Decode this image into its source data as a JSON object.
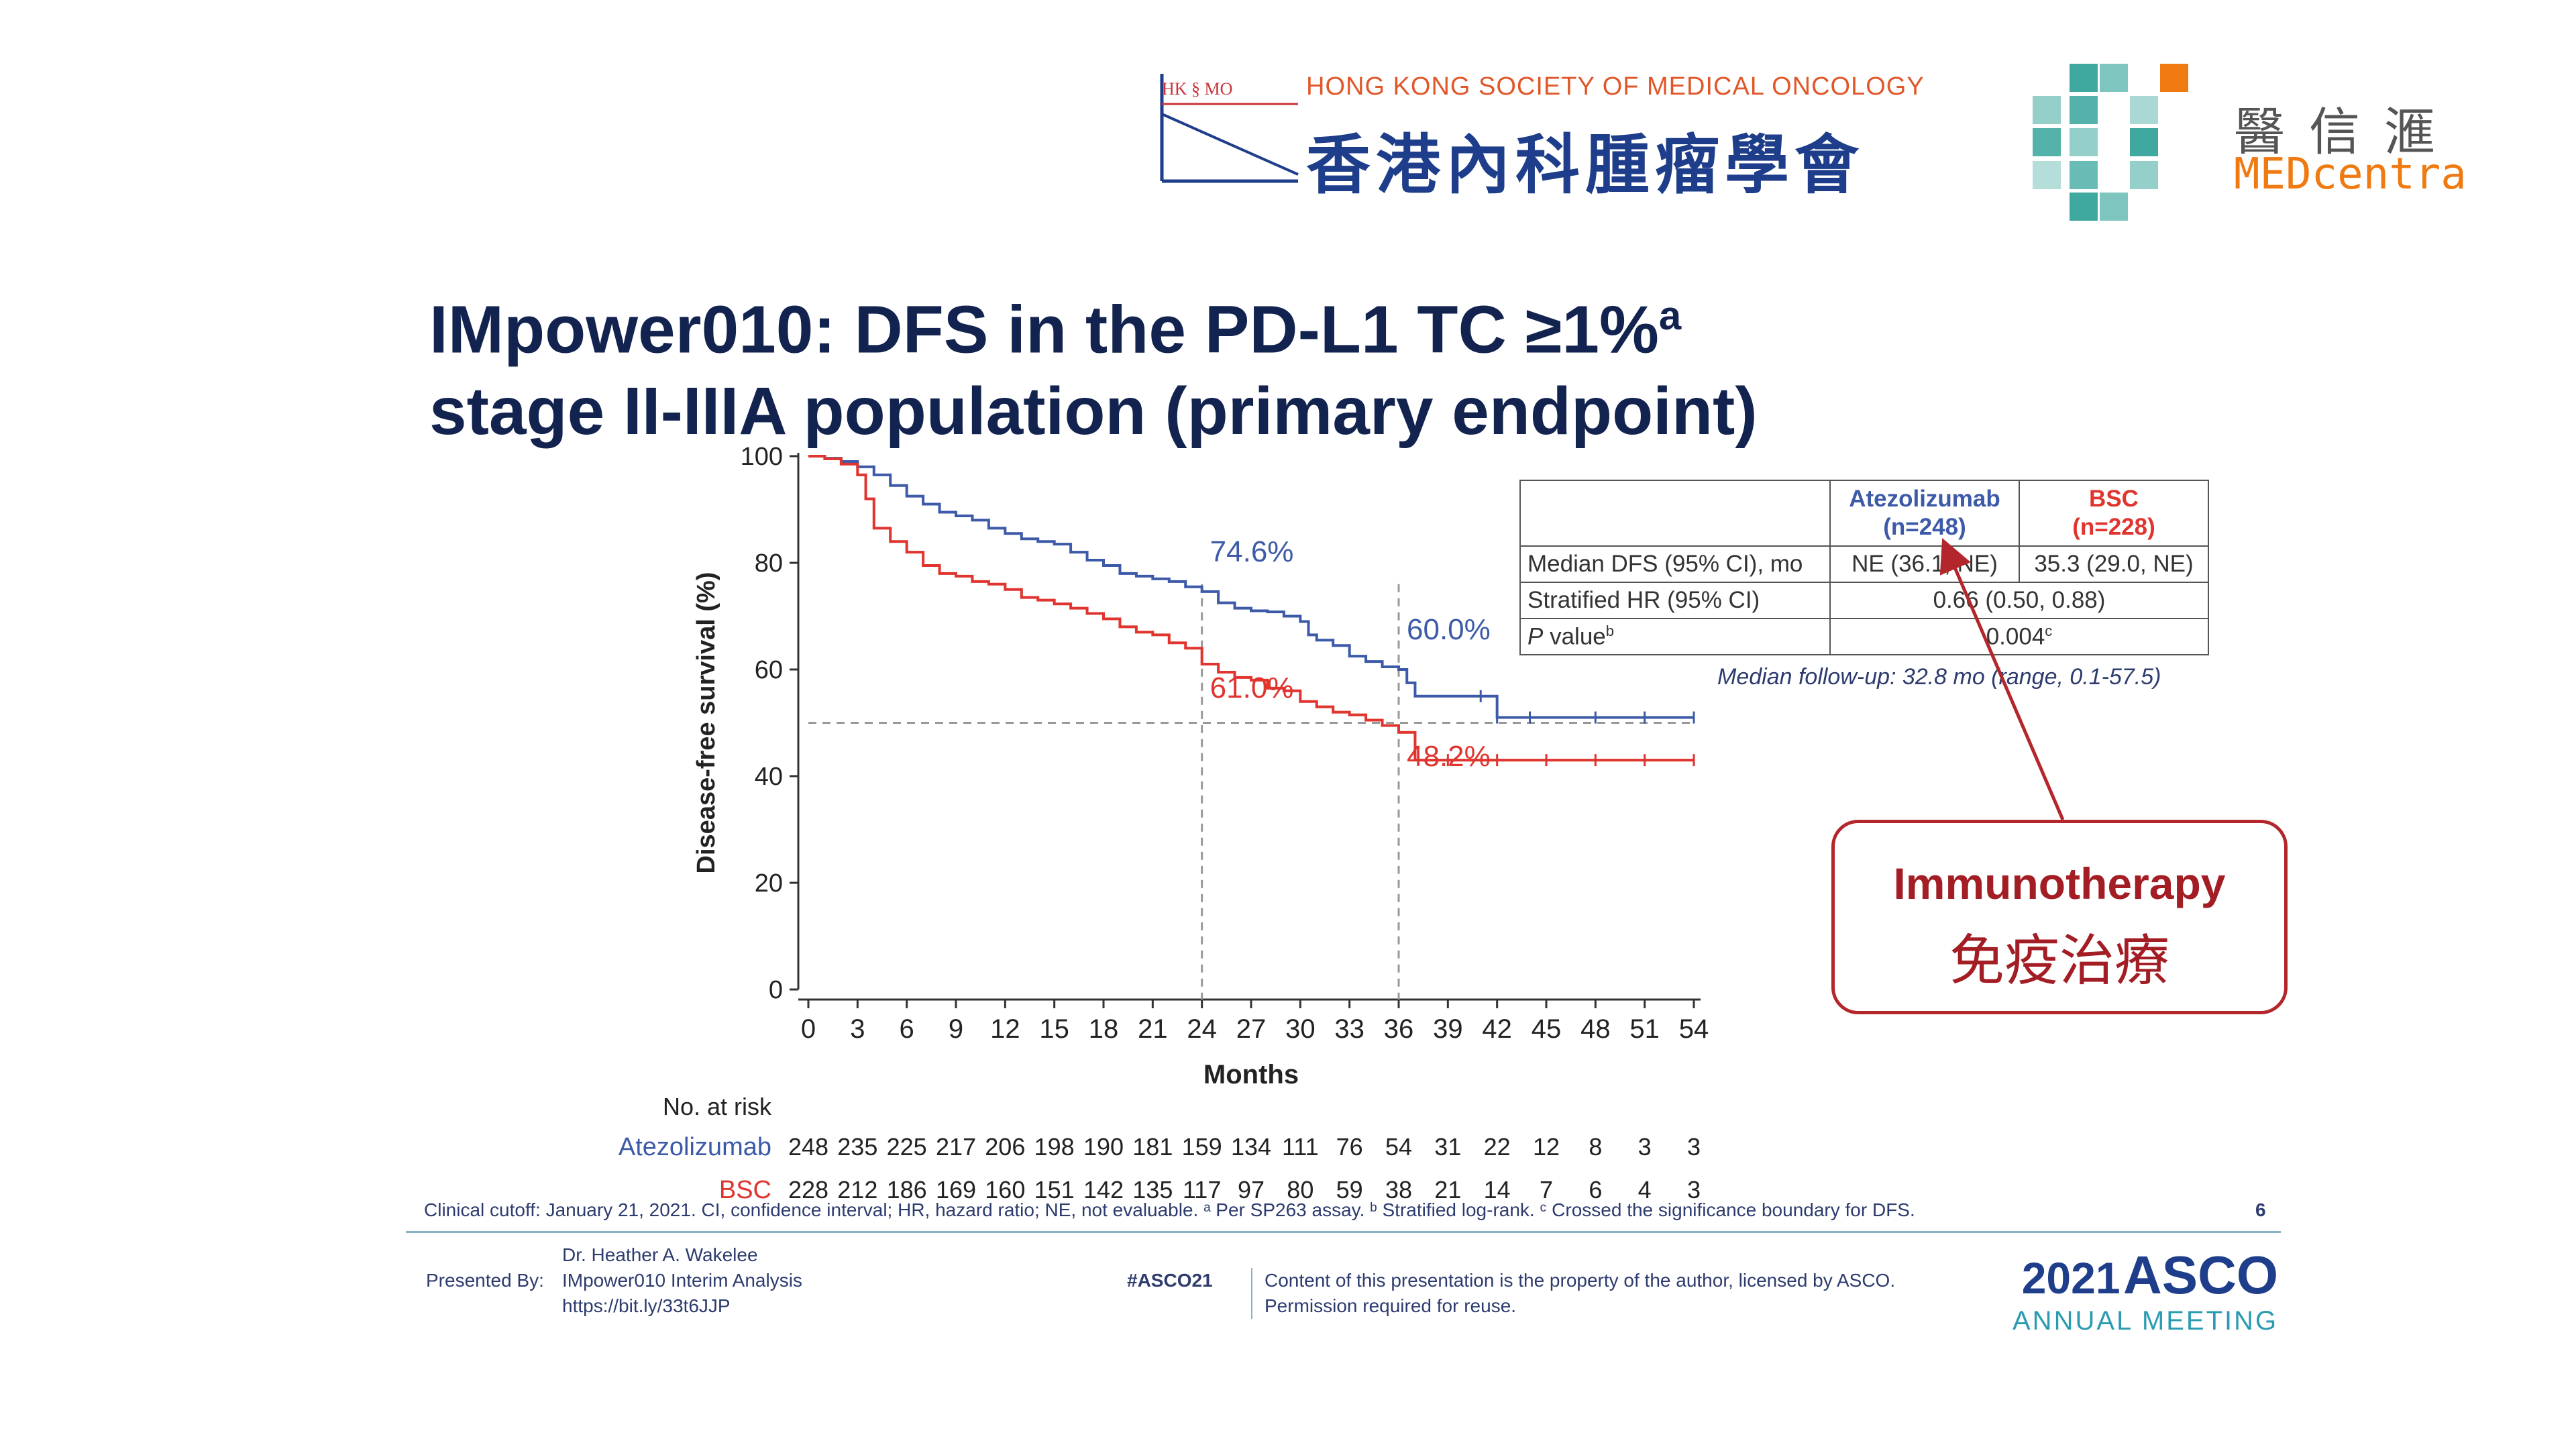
{
  "header": {
    "hk_logo_mark": "HK § MO",
    "hk_society_en": "HONG KONG SOCIETY OF MEDICAL ONCOLOGY",
    "hk_society_zh": "香港內科腫瘤學會",
    "medcentra_zh": "醫信滙",
    "medcentra_en": "MEDcentra"
  },
  "title": {
    "line1": "IMpower010: DFS in the PD-L1 TC ≥1%",
    "line1_sup": "a",
    "line2": "stage II-IIIA population (primary endpoint)"
  },
  "chart_data": {
    "type": "line",
    "ylabel": "Disease-free survival (%)",
    "xlabel": "Months",
    "xlim": [
      0,
      54
    ],
    "ylim": [
      0,
      100
    ],
    "x_ticks": [
      0,
      3,
      6,
      9,
      12,
      15,
      18,
      21,
      24,
      27,
      30,
      33,
      36,
      39,
      42,
      45,
      48,
      51,
      54
    ],
    "y_ticks": [
      0,
      20,
      40,
      60,
      80,
      100
    ],
    "reference_line_y": 50,
    "marker_lines_x": [
      24,
      36
    ],
    "series": [
      {
        "name": "Atezolizumab",
        "color": "#3d5aa8",
        "points": [
          [
            0,
            100
          ],
          [
            1,
            99.6
          ],
          [
            2,
            99
          ],
          [
            3,
            98
          ],
          [
            4,
            96.5
          ],
          [
            5,
            94.5
          ],
          [
            6,
            92.5
          ],
          [
            7,
            91
          ],
          [
            8,
            89.5
          ],
          [
            9,
            88.8
          ],
          [
            10,
            88
          ],
          [
            11,
            86.5
          ],
          [
            12,
            85.5
          ],
          [
            13,
            84.5
          ],
          [
            14,
            84
          ],
          [
            15,
            83.5
          ],
          [
            16,
            82
          ],
          [
            17,
            80.5
          ],
          [
            18,
            79.5
          ],
          [
            19,
            78
          ],
          [
            20,
            77.5
          ],
          [
            21,
            77
          ],
          [
            22,
            76.5
          ],
          [
            23,
            75.5
          ],
          [
            24,
            74.6
          ],
          [
            25,
            72.5
          ],
          [
            26,
            71.5
          ],
          [
            27,
            71
          ],
          [
            28,
            70.8
          ],
          [
            29,
            70
          ],
          [
            30,
            69
          ],
          [
            30.5,
            66.5
          ],
          [
            31,
            65.5
          ],
          [
            32,
            64.5
          ],
          [
            33,
            62.5
          ],
          [
            34,
            61.5
          ],
          [
            35,
            60.5
          ],
          [
            36,
            60
          ],
          [
            36.5,
            57.5
          ],
          [
            37,
            55
          ],
          [
            39,
            55
          ],
          [
            41,
            55
          ],
          [
            42,
            51
          ],
          [
            44,
            51
          ],
          [
            48,
            51
          ],
          [
            51,
            51
          ],
          [
            54,
            51
          ]
        ],
        "annotations": [
          {
            "x": 24,
            "label": "74.6%"
          },
          {
            "x": 36,
            "label": "60.0%"
          }
        ]
      },
      {
        "name": "BSC",
        "color": "#e0342f",
        "points": [
          [
            0,
            100
          ],
          [
            1,
            99.5
          ],
          [
            2,
            98.5
          ],
          [
            3,
            96.5
          ],
          [
            3.5,
            92
          ],
          [
            4,
            86.5
          ],
          [
            5,
            84
          ],
          [
            6,
            82
          ],
          [
            7,
            79.5
          ],
          [
            8,
            78
          ],
          [
            9,
            77.5
          ],
          [
            10,
            76.5
          ],
          [
            11,
            76
          ],
          [
            12,
            75
          ],
          [
            13,
            73.5
          ],
          [
            14,
            73
          ],
          [
            15,
            72.3
          ],
          [
            16,
            71.5
          ],
          [
            17,
            70.5
          ],
          [
            18,
            69.5
          ],
          [
            19,
            68
          ],
          [
            20,
            67
          ],
          [
            21,
            66.5
          ],
          [
            22,
            65
          ],
          [
            23,
            64
          ],
          [
            24,
            61
          ],
          [
            25,
            59.5
          ],
          [
            26,
            58.5
          ],
          [
            27,
            58
          ],
          [
            28,
            56.5
          ],
          [
            29,
            56
          ],
          [
            30,
            54
          ],
          [
            31,
            53
          ],
          [
            32,
            52
          ],
          [
            33,
            51.5
          ],
          [
            34,
            50.5
          ],
          [
            35,
            49.5
          ],
          [
            36,
            48.2
          ],
          [
            37,
            43
          ],
          [
            39,
            43
          ],
          [
            42,
            43
          ],
          [
            45,
            43
          ],
          [
            48,
            43
          ],
          [
            51,
            43
          ],
          [
            54,
            43
          ]
        ],
        "annotations": [
          {
            "x": 24,
            "label": "61.0%"
          },
          {
            "x": 36,
            "label": "48.2%"
          }
        ]
      }
    ],
    "risk_table": {
      "title": "No. at risk",
      "rows": [
        {
          "name": "Atezolizumab",
          "color": "#3d5aa8",
          "values": [
            "248",
            "235",
            "225",
            "217",
            "206",
            "198",
            "190",
            "181",
            "159",
            "134",
            "111",
            "76",
            "54",
            "31",
            "22",
            "12",
            "8",
            "3",
            "3"
          ]
        },
        {
          "name": "BSC",
          "color": "#e0342f",
          "values": [
            "228",
            "212",
            "186",
            "169",
            "160",
            "151",
            "142",
            "135",
            "117",
            "97",
            "80",
            "59",
            "38",
            "21",
            "14",
            "7",
            "6",
            "4",
            "3"
          ]
        }
      ]
    }
  },
  "summary_table": {
    "col1_name": "Atezolizumab",
    "col1_n": "(n=248)",
    "col2_name": "BSC",
    "col2_n": "(n=228)",
    "row1_label": "Median DFS (95% CI), mo",
    "row1_col1": "NE (36.1, NE)",
    "row1_col2": "35.3 (29.0, NE)",
    "row2_label": "Stratified HR (95% CI)",
    "row2_value": "0.66 (0.50, 0.88)",
    "row3_label_p": "P",
    "row3_label_rest": " value",
    "row3_label_sup": "b",
    "row3_value": "0.004",
    "row3_value_sup": "c",
    "followup": "Median follow-up: 32.8 mo (range, 0.1-57.5)"
  },
  "annotation": {
    "en": "Immunotherapy",
    "zh": "免疫治療",
    "color": "#a31d24"
  },
  "footer": {
    "cutoff": "Clinical cutoff: January 21, 2021. CI, confidence interval; HR, hazard ratio; NE, not evaluable. ᵃ Per SP263 assay. ᵇ Stratified log-rank. ᶜ Crossed the significance boundary for DFS.",
    "page_number": "6",
    "presented_by": "Presented By:",
    "presenter_name": "Dr. Heather A. Wakelee",
    "presenter_talk": "IMpower010 Interim Analysis",
    "presenter_link": "https://bit.ly/33t6JJP",
    "hashtag": "#ASCO21",
    "copyright_line1": "Content of this presentation is the property of the author, licensed by ASCO.",
    "copyright_line2": "Permission required for reuse.",
    "asco_year": "2021",
    "asco_name": "ASCO",
    "asco_meeting": "ANNUAL MEETING"
  }
}
